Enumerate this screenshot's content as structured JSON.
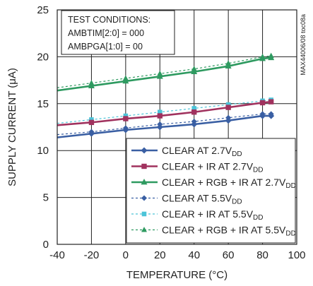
{
  "chart_data": {
    "type": "line",
    "xlabel": "TEMPERATURE (°C)",
    "ylabel": "SUPPLY CURRENT (μA)",
    "xlim": [
      -40,
      100
    ],
    "ylim": [
      0,
      25
    ],
    "xticks": [
      "-40",
      "-20",
      "0",
      "20",
      "40",
      "60",
      "80",
      "100"
    ],
    "yticks": [
      "0",
      "5",
      "10",
      "15",
      "20",
      "25"
    ],
    "grid": true,
    "legend_position": "bottom-right",
    "part_number": "MAX44006/08 toc08a",
    "conditions": {
      "heading": "TEST CONDITIONS:",
      "line1": "AMBTIM[2:0] = 000",
      "line2": "AMBPGA[1:0] = 00"
    },
    "x": [
      -40,
      -20,
      0,
      20,
      40,
      60,
      80,
      85
    ],
    "series": [
      {
        "label_main": "CLEAR AT 2.7V",
        "label_sub": "DD",
        "color": "#3a5fa3",
        "style": "solid",
        "marker": "diamond",
        "values": [
          11.4,
          11.8,
          12.2,
          12.5,
          12.8,
          13.2,
          13.7,
          13.7
        ]
      },
      {
        "label_main": "CLEAR + IR AT 2.7V",
        "label_sub": "DD",
        "color": "#a0325e",
        "style": "solid",
        "marker": "square",
        "values": [
          12.7,
          13.0,
          13.4,
          13.7,
          14.1,
          14.6,
          15.1,
          15.2
        ]
      },
      {
        "label_main": "CLEAR + RGB + IR AT 2.7V",
        "label_sub": "DD",
        "color": "#2e9a60",
        "style": "solid",
        "marker": "triangle",
        "values": [
          16.4,
          16.9,
          17.4,
          17.9,
          18.4,
          19.0,
          19.8,
          19.9
        ]
      },
      {
        "label_main": "CLEAR AT 5.5V",
        "label_sub": "DD",
        "color": "#3a5fa3",
        "style": "dotted",
        "marker": "diamond",
        "values": [
          11.7,
          12.0,
          12.4,
          12.8,
          13.1,
          13.5,
          13.9,
          13.9
        ]
      },
      {
        "label_main": "CLEAR + IR AT 5.5V",
        "label_sub": "DD",
        "color": "#4cc4d8",
        "style": "dotted",
        "marker": "square",
        "values": [
          12.9,
          13.3,
          13.7,
          14.1,
          14.5,
          14.9,
          15.3,
          15.4
        ]
      },
      {
        "label_main": "CLEAR + RGB + IR AT 5.5V",
        "label_sub": "DD",
        "color": "#2e9a60",
        "style": "dotted",
        "marker": "triangle",
        "values": [
          16.7,
          17.2,
          17.7,
          18.2,
          18.7,
          19.3,
          20.0,
          20.1
        ]
      }
    ]
  }
}
